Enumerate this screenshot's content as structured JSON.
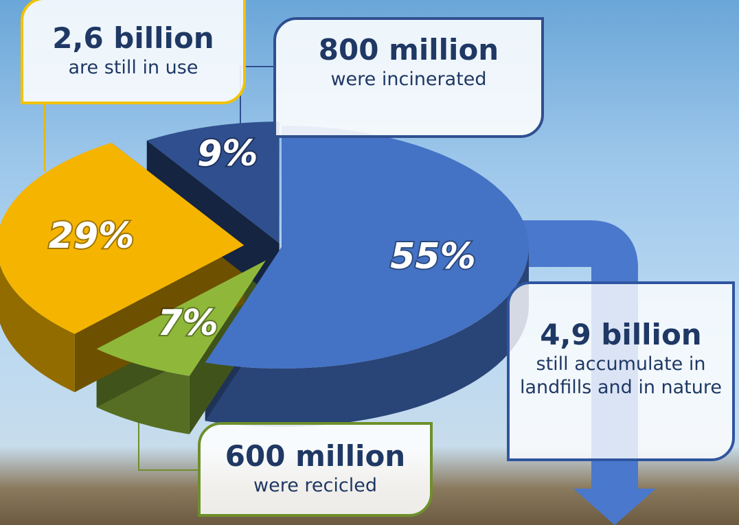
{
  "chart_data": {
    "type": "pie",
    "values": [
      55,
      7,
      29,
      9
    ],
    "value_labels": [
      "55%",
      "7%",
      "29%",
      "9%"
    ],
    "colors": [
      "#4472c4",
      "#8fb83a",
      "#f5b400",
      "#2f4f8f"
    ],
    "callouts": [
      {
        "amount": "4,9 billion",
        "text": "still accumulate in landfills and in nature"
      },
      {
        "amount": "600 million",
        "text": "were recicled"
      },
      {
        "amount": "2,6 billion",
        "text": "are still in use"
      },
      {
        "amount": "800 million",
        "text": "were incinerated"
      }
    ]
  }
}
